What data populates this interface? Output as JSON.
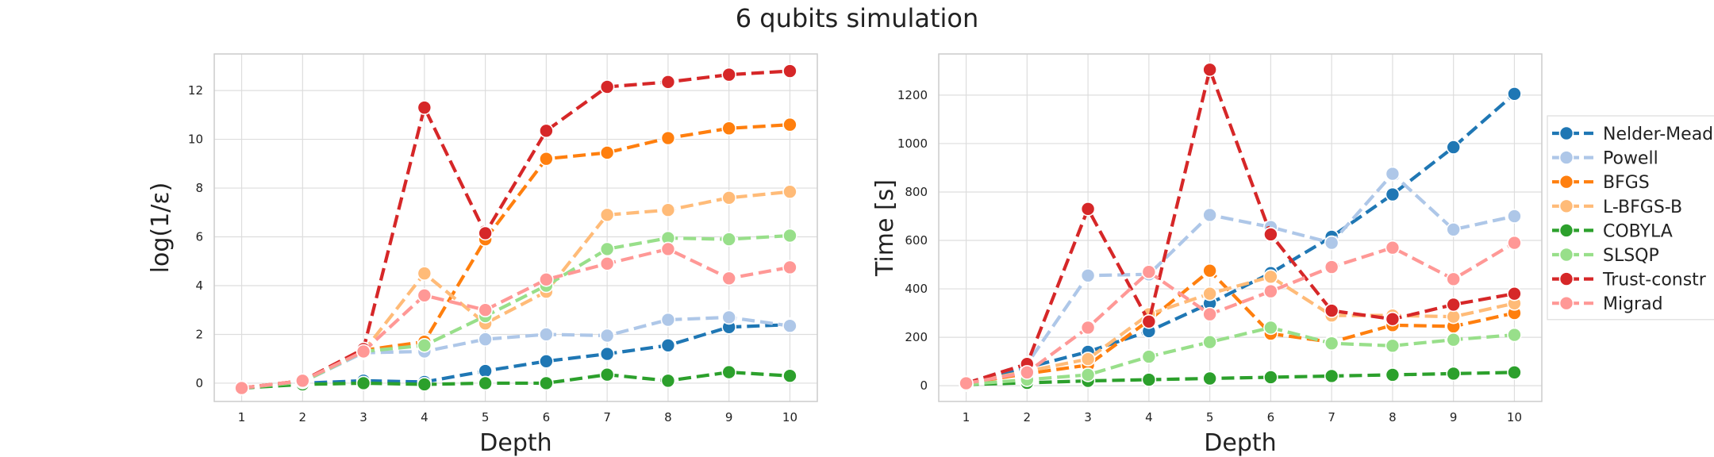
{
  "figure": {
    "title": "6 qubits simulation"
  },
  "colors": {
    "Nelder-Mead": "#1f77b4",
    "Powell": "#aec7e8",
    "BFGS": "#ff7f0e",
    "L-BFGS-B": "#ffbb78",
    "COBYLA": "#2ca02c",
    "SLSQP": "#98df8a",
    "Trust-constr": "#d62728",
    "Migrad": "#ff9896"
  },
  "legend": {
    "placement": "right-outside",
    "entries": [
      "Nelder-Mead",
      "Powell",
      "BFGS",
      "L-BFGS-B",
      "COBYLA",
      "SLSQP",
      "Trust-constr",
      "Migrad"
    ]
  },
  "chart_data": [
    {
      "type": "line",
      "title": "",
      "xlabel": "Depth",
      "ylabel": "log(1/ε)",
      "x": [
        1,
        2,
        3,
        4,
        5,
        6,
        7,
        8,
        9,
        10
      ],
      "xlim": [
        0.55,
        10.45
      ],
      "ylim": [
        -0.75,
        13.5
      ],
      "yticks": [
        0,
        2,
        4,
        6,
        8,
        10,
        12
      ],
      "grid": true,
      "series": [
        {
          "name": "Nelder-Mead",
          "values": [
            -0.2,
            0.0,
            0.1,
            0.05,
            0.5,
            0.9,
            1.2,
            1.55,
            2.3,
            2.4
          ]
        },
        {
          "name": "Powell",
          "values": [
            -0.2,
            0.05,
            1.25,
            1.3,
            1.8,
            2.0,
            1.95,
            2.6,
            2.7,
            2.35
          ]
        },
        {
          "name": "BFGS",
          "values": [
            -0.2,
            0.1,
            1.35,
            1.7,
            5.9,
            9.2,
            9.45,
            10.05,
            10.45,
            10.6
          ]
        },
        {
          "name": "L-BFGS-B",
          "values": [
            -0.2,
            0.1,
            1.3,
            4.5,
            2.45,
            3.75,
            6.9,
            7.1,
            7.6,
            7.85
          ]
        },
        {
          "name": "COBYLA",
          "values": [
            -0.2,
            -0.05,
            0.0,
            -0.05,
            0.0,
            0.0,
            0.35,
            0.1,
            0.45,
            0.3
          ]
        },
        {
          "name": "SLSQP",
          "values": [
            -0.2,
            0.05,
            1.3,
            1.55,
            2.75,
            4.0,
            5.5,
            5.95,
            5.9,
            6.05
          ]
        },
        {
          "name": "Trust-constr",
          "values": [
            -0.2,
            0.1,
            1.4,
            11.3,
            6.15,
            10.35,
            12.15,
            12.35,
            12.65,
            12.8
          ]
        },
        {
          "name": "Migrad",
          "values": [
            -0.2,
            0.1,
            1.3,
            3.6,
            3.0,
            4.25,
            4.9,
            5.5,
            4.3,
            4.75
          ]
        }
      ]
    },
    {
      "type": "line",
      "title": "",
      "xlabel": "Depth",
      "ylabel": "Time [s]",
      "x": [
        1,
        2,
        3,
        4,
        5,
        6,
        7,
        8,
        9,
        10
      ],
      "xlim": [
        0.55,
        10.45
      ],
      "ylim": [
        -65,
        1370
      ],
      "yticks": [
        0,
        200,
        400,
        600,
        800,
        1000,
        1200
      ],
      "grid": true,
      "series": [
        {
          "name": "Nelder-Mead",
          "values": [
            10,
            75,
            140,
            225,
            340,
            465,
            615,
            790,
            985,
            1205
          ]
        },
        {
          "name": "Powell",
          "values": [
            10,
            90,
            455,
            460,
            705,
            655,
            590,
            875,
            645,
            700
          ]
        },
        {
          "name": "BFGS",
          "values": [
            10,
            50,
            85,
            270,
            475,
            215,
            180,
            250,
            245,
            300
          ]
        },
        {
          "name": "L-BFGS-B",
          "values": [
            10,
            60,
            110,
            295,
            380,
            450,
            290,
            290,
            285,
            340
          ]
        },
        {
          "name": "COBYLA",
          "values": [
            5,
            12,
            20,
            25,
            30,
            35,
            40,
            45,
            50,
            55
          ]
        },
        {
          "name": "SLSQP",
          "values": [
            5,
            25,
            45,
            120,
            180,
            240,
            175,
            165,
            190,
            210
          ]
        },
        {
          "name": "Trust-constr",
          "values": [
            10,
            90,
            730,
            265,
            1305,
            625,
            310,
            275,
            335,
            380
          ]
        },
        {
          "name": "Migrad",
          "values": [
            10,
            55,
            240,
            470,
            295,
            390,
            490,
            570,
            440,
            590
          ]
        }
      ]
    }
  ]
}
